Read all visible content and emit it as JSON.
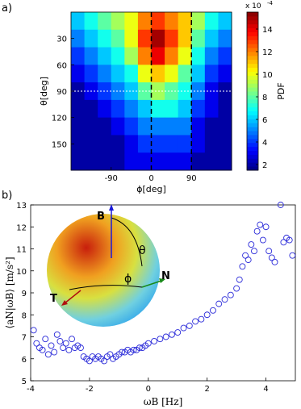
{
  "chart_data": [
    {
      "type": "heatmap",
      "panel_label": "a)",
      "xlabel": "ϕ[deg]",
      "ylabel": "θ[deg]",
      "xlim": [
        -180,
        180
      ],
      "ylim": [
        0,
        180
      ],
      "y_reversed": true,
      "xticks": [
        -90,
        0,
        90
      ],
      "yticks": [
        30,
        60,
        90,
        120,
        150
      ],
      "x": [
        -165,
        -135,
        -105,
        -75,
        -45,
        -15,
        15,
        45,
        75,
        105,
        135,
        165
      ],
      "y": [
        10,
        30,
        50,
        70,
        90,
        110,
        130,
        150,
        170
      ],
      "z": [
        [
          6,
          7,
          8,
          9,
          10,
          12,
          13,
          12,
          11,
          9,
          7,
          6
        ],
        [
          5,
          6,
          7,
          8,
          10,
          13,
          15,
          13,
          11,
          8,
          6,
          5
        ],
        [
          4,
          5,
          6,
          7,
          9,
          12,
          14,
          12,
          10,
          7,
          5,
          4
        ],
        [
          3,
          4,
          5,
          6,
          7,
          10,
          11,
          10,
          8,
          6,
          4,
          3
        ],
        [
          2,
          3,
          4,
          5,
          6,
          8,
          9,
          8,
          7,
          5,
          3,
          2
        ],
        [
          2,
          2,
          3,
          4,
          5,
          6,
          7,
          7,
          6,
          4,
          3,
          2
        ],
        [
          2,
          2,
          2,
          3,
          4,
          5,
          5,
          5,
          5,
          3,
          2,
          2
        ],
        [
          2,
          2,
          2,
          2,
          3,
          4,
          4,
          4,
          4,
          3,
          2,
          2
        ],
        [
          2,
          2,
          2,
          2,
          3,
          3,
          3,
          3,
          3,
          2,
          2,
          2
        ]
      ],
      "vlines": [
        0,
        90
      ],
      "hlines": [
        90
      ],
      "colorbar": {
        "label": "PDF",
        "multiplier": "x 10",
        "multiplier_exp": "-4",
        "lim": [
          1.5,
          15.5
        ],
        "ticks": [
          2,
          4,
          6,
          8,
          10,
          12,
          14
        ]
      }
    },
    {
      "type": "scatter",
      "panel_label": "b)",
      "xlabel": "ωB [Hz]",
      "ylabel": "⟨aN|ωB⟩ [m/s²]",
      "xlim": [
        -4,
        5
      ],
      "ylim": [
        5,
        13
      ],
      "xticks": [
        -4,
        -2,
        0,
        2,
        4
      ],
      "yticks": [
        5,
        6,
        7,
        8,
        9,
        10,
        11,
        12,
        13
      ],
      "color": "#2b2bd9",
      "annotations": [
        "B",
        "N",
        "T",
        "θ",
        "ϕ"
      ],
      "x": [
        -3.9,
        -3.8,
        -3.7,
        -3.6,
        -3.5,
        -3.4,
        -3.3,
        -3.2,
        -3.1,
        -3.0,
        -2.9,
        -2.8,
        -2.7,
        -2.6,
        -2.5,
        -2.4,
        -2.3,
        -2.2,
        -2.1,
        -2.0,
        -1.9,
        -1.8,
        -1.7,
        -1.6,
        -1.5,
        -1.4,
        -1.3,
        -1.2,
        -1.1,
        -1.0,
        -0.9,
        -0.8,
        -0.7,
        -0.6,
        -0.5,
        -0.4,
        -0.3,
        -0.2,
        -0.1,
        0,
        0.2,
        0.4,
        0.6,
        0.8,
        1.0,
        1.2,
        1.4,
        1.6,
        1.8,
        2.0,
        2.2,
        2.4,
        2.6,
        2.8,
        3.0,
        3.1,
        3.2,
        3.3,
        3.4,
        3.5,
        3.6,
        3.7,
        3.8,
        3.9,
        4.0,
        4.1,
        4.2,
        4.3,
        4.5,
        4.6,
        4.7,
        4.8,
        4.9
      ],
      "values": [
        7.3,
        6.7,
        6.5,
        6.4,
        6.9,
        6.2,
        6.6,
        6.3,
        7.1,
        6.8,
        6.5,
        6.7,
        6.4,
        6.9,
        6.5,
        6.6,
        6.5,
        6.1,
        6.0,
        5.9,
        6.1,
        6.0,
        6.1,
        6.0,
        5.9,
        6.1,
        6.2,
        6.0,
        6.1,
        6.2,
        6.3,
        6.3,
        6.4,
        6.3,
        6.4,
        6.4,
        6.5,
        6.5,
        6.6,
        6.7,
        6.8,
        6.9,
        7.0,
        7.1,
        7.2,
        7.4,
        7.5,
        7.7,
        7.8,
        8.0,
        8.2,
        8.5,
        8.7,
        8.9,
        9.2,
        9.6,
        10.2,
        10.7,
        10.5,
        11.2,
        10.9,
        11.8,
        12.1,
        11.4,
        12.0,
        10.9,
        10.6,
        10.4,
        13.0,
        11.3,
        11.5,
        11.4,
        10.7
      ]
    }
  ]
}
